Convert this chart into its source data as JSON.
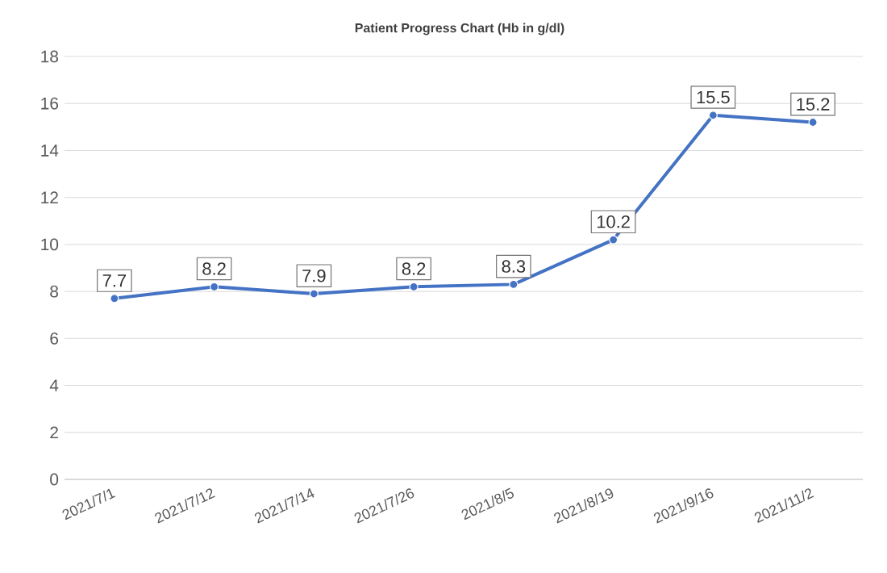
{
  "chart_data": {
    "type": "line",
    "title": "Patient Progress Chart (Hb in g/dl)",
    "categories": [
      "2021/7/1",
      "2021/7/12",
      "2021/7/14",
      "2021/7/26",
      "2021/8/5",
      "2021/8/19",
      "2021/9/16",
      "2021/11/2"
    ],
    "values": [
      7.7,
      8.2,
      7.9,
      8.2,
      8.3,
      10.2,
      15.5,
      15.2
    ],
    "color": "#4472c4",
    "marker": "circle",
    "line_style": "solid",
    "data_labels": true,
    "ylim": [
      0,
      18
    ],
    "yticks": [
      0,
      2,
      4,
      6,
      8,
      10,
      12,
      14,
      16,
      18
    ],
    "grid": "y"
  }
}
